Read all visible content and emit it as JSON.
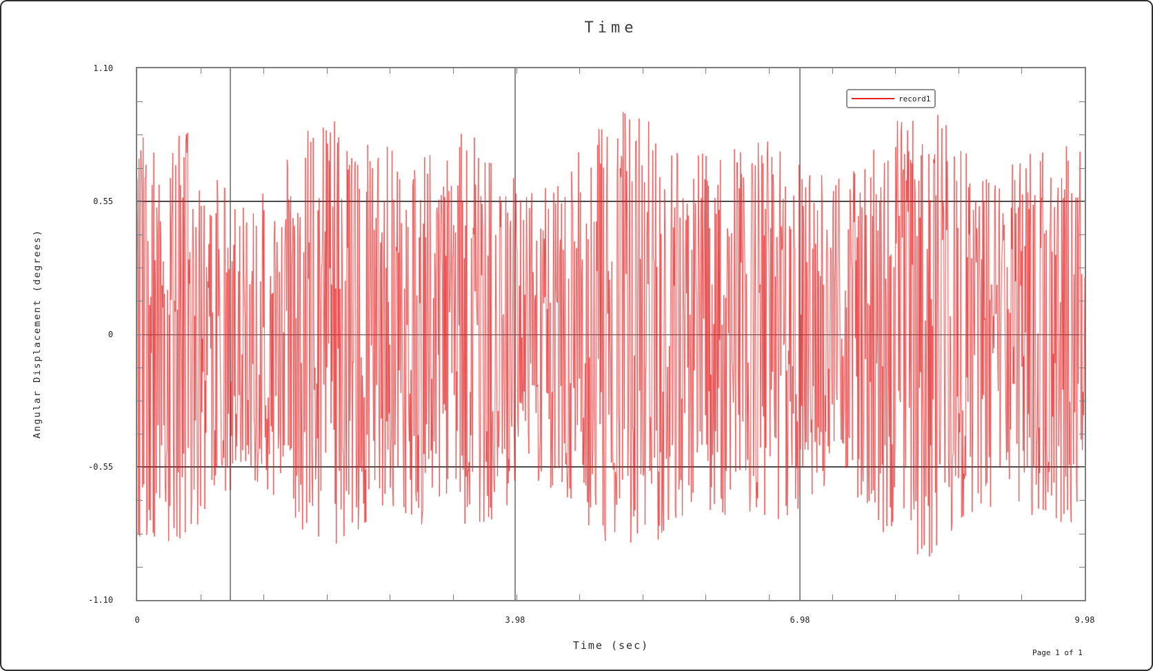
{
  "window": {
    "background": "#ffffff",
    "frame_border_color": "#7d7d7d"
  },
  "footer": {
    "page_label": "Page 1 of 1"
  },
  "chart_data": {
    "type": "line",
    "title": "Time",
    "xlabel": "Time (sec)",
    "ylabel": "Angular Displacement (degrees)",
    "xlim": [
      0,
      9.98
    ],
    "ylim": [
      -1.1,
      1.1
    ],
    "x_tick_values": [
      0,
      3.98,
      6.98,
      9.98
    ],
    "x_tick_labels": [
      "0",
      "3.98",
      "6.98",
      "9.98"
    ],
    "y_tick_values": [
      1.1,
      0.55,
      0,
      -0.55,
      -1.1
    ],
    "y_tick_labels": [
      "1.10",
      "0.55",
      "0",
      "-0.55",
      "-1.10"
    ],
    "x_gridlines": [
      0.98,
      3.98,
      6.98
    ],
    "y_gridlines": [
      0.55,
      0,
      -0.55
    ],
    "minor_tick_intervals": {
      "x": 15,
      "y": 16
    },
    "grid": true,
    "legend": {
      "position": "top-right",
      "entries": [
        {
          "label": "record1",
          "color": "#e51f1f"
        }
      ]
    },
    "series": [
      {
        "name": "record1",
        "color": "#e51f1f",
        "waveform": "random-noise",
        "points": 1600,
        "seed": 20240817,
        "amplitude_floor": 0.62,
        "amplitude_peak": 0.95,
        "description": "Dense random angular-displacement noise oscillating between about -0.95 and +0.95 degrees over 0 to 9.98 seconds, drawn as a continuous red line"
      }
    ]
  }
}
